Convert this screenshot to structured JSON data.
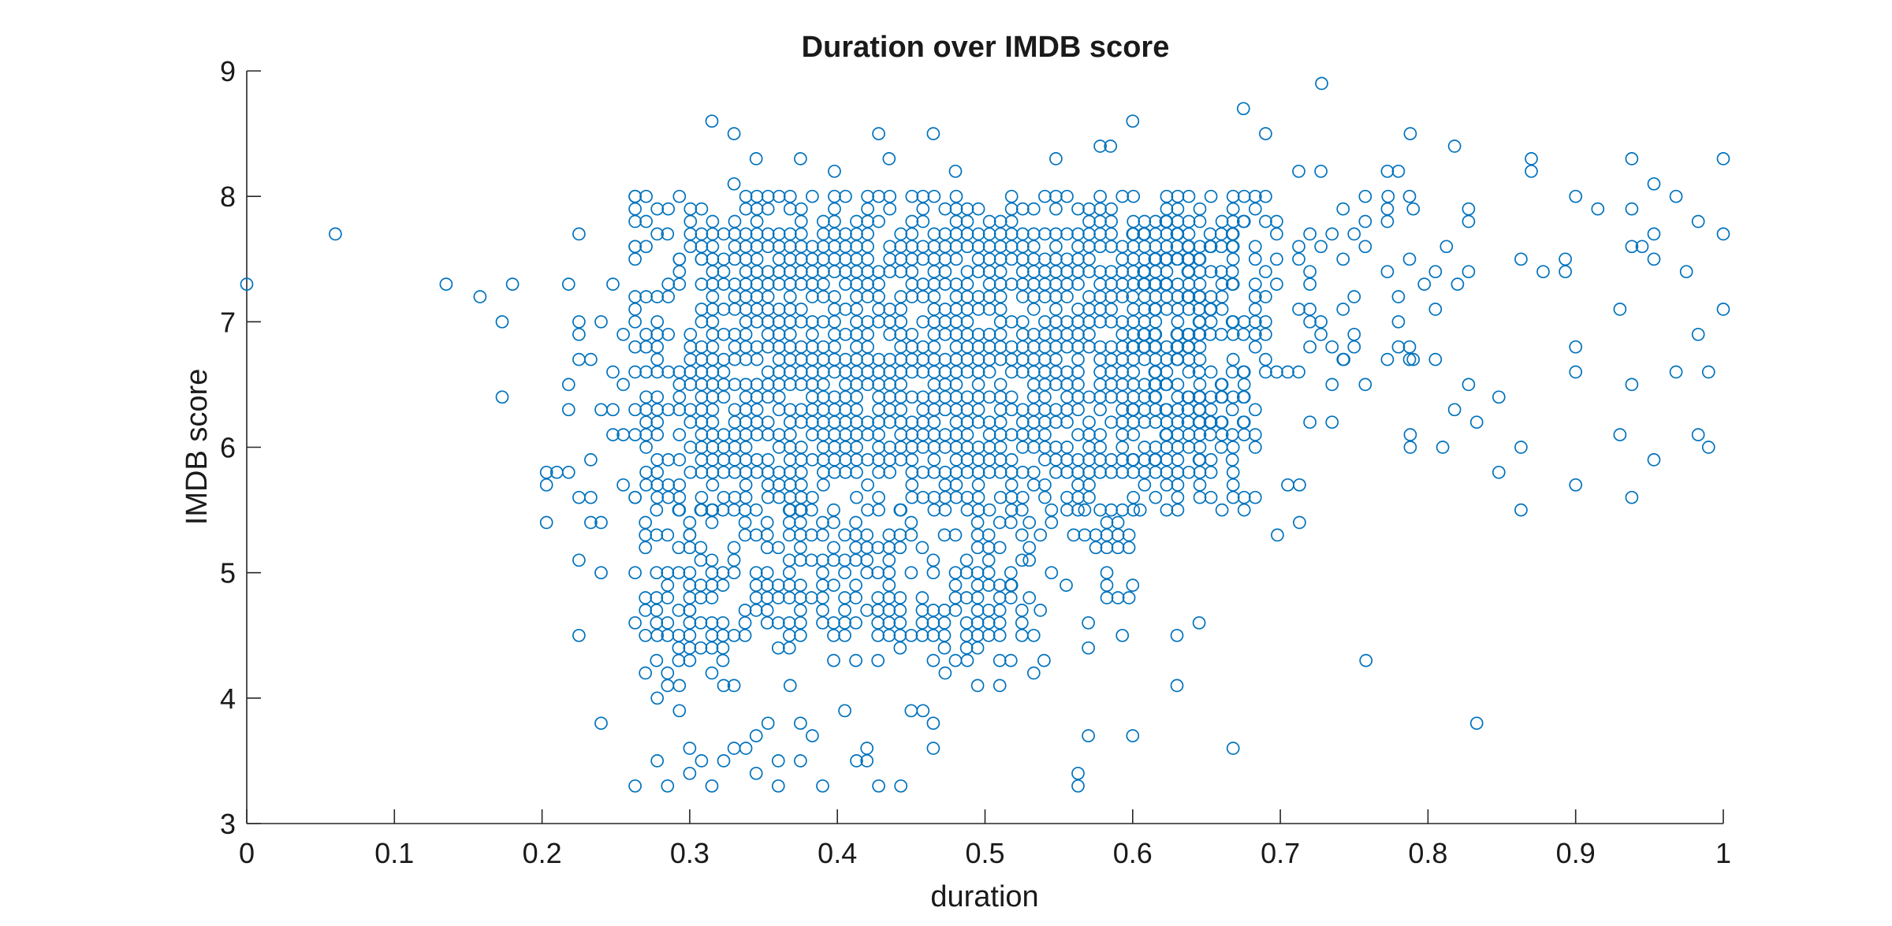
{
  "chart_data": {
    "type": "scatter",
    "title": "Duration over IMDB score",
    "xlabel": "duration",
    "ylabel": "IMDB score",
    "xlim": [
      0,
      1
    ],
    "ylim": [
      3,
      9
    ],
    "xticks": [
      "0",
      "0.1",
      "0.2",
      "0.3",
      "0.4",
      "0.5",
      "0.6",
      "0.7",
      "0.8",
      "0.9",
      "1"
    ],
    "yticks": [
      "3",
      "4",
      "5",
      "6",
      "7",
      "8",
      "9"
    ],
    "grid": false,
    "legend": "none",
    "marker": "open-circle",
    "marker_color": "#0072BD",
    "series": [
      {
        "points": [
          [
            0.0,
            7.3
          ],
          [
            0.06,
            7.7
          ],
          [
            0.135,
            7.3
          ],
          [
            0.158,
            7.2
          ],
          [
            0.173,
            7.0
          ],
          [
            0.173,
            6.4
          ],
          [
            0.18,
            7.3
          ],
          [
            0.203,
            5.8
          ],
          [
            0.203,
            5.7
          ],
          [
            0.203,
            5.4
          ],
          [
            0.21,
            5.8
          ],
          [
            0.218,
            5.8
          ],
          [
            0.218,
            7.3
          ],
          [
            0.218,
            6.5
          ],
          [
            0.218,
            6.3
          ],
          [
            0.225,
            7.7
          ],
          [
            0.225,
            7.0
          ],
          [
            0.225,
            6.9
          ],
          [
            0.225,
            6.7
          ],
          [
            0.225,
            5.6
          ],
          [
            0.225,
            5.1
          ],
          [
            0.225,
            4.5
          ],
          [
            0.233,
            6.7
          ],
          [
            0.233,
            5.9
          ],
          [
            0.233,
            5.6
          ],
          [
            0.233,
            5.4
          ],
          [
            0.24,
            7.0
          ],
          [
            0.24,
            6.3
          ],
          [
            0.24,
            5.4
          ],
          [
            0.24,
            5.0
          ],
          [
            0.24,
            3.8
          ],
          [
            0.248,
            7.3
          ],
          [
            0.248,
            6.6
          ],
          [
            0.248,
            6.3
          ],
          [
            0.248,
            6.1
          ],
          [
            0.255,
            6.9
          ],
          [
            0.255,
            6.5
          ],
          [
            0.255,
            6.1
          ],
          [
            0.255,
            5.7
          ],
          [
            0.263,
            8.0
          ],
          [
            0.263,
            7.6
          ],
          [
            0.263,
            7.2
          ],
          [
            0.263,
            6.3
          ],
          [
            0.263,
            5.6
          ],
          [
            0.263,
            5.0
          ],
          [
            0.263,
            4.6
          ],
          [
            0.263,
            3.3
          ],
          [
            0.27,
            5.3
          ],
          [
            0.27,
            4.7
          ],
          [
            0.27,
            4.2
          ],
          [
            0.278,
            4.5
          ],
          [
            0.278,
            4.0
          ],
          [
            0.278,
            3.5
          ],
          [
            0.285,
            7.7
          ],
          [
            0.285,
            4.6
          ],
          [
            0.285,
            4.2
          ],
          [
            0.285,
            4.1
          ],
          [
            0.285,
            3.3
          ],
          [
            0.293,
            7.5
          ],
          [
            0.293,
            4.1
          ],
          [
            0.293,
            3.9
          ],
          [
            0.3,
            5.3
          ],
          [
            0.3,
            5.0
          ],
          [
            0.3,
            4.7
          ],
          [
            0.3,
            4.4
          ],
          [
            0.3,
            3.6
          ],
          [
            0.3,
            3.4
          ],
          [
            0.308,
            7.5
          ],
          [
            0.308,
            3.5
          ],
          [
            0.315,
            8.6
          ],
          [
            0.315,
            3.3
          ],
          [
            0.315,
            4.2
          ],
          [
            0.323,
            4.1
          ],
          [
            0.323,
            3.5
          ],
          [
            0.33,
            8.5
          ],
          [
            0.33,
            8.1
          ],
          [
            0.33,
            3.6
          ],
          [
            0.33,
            4.1
          ],
          [
            0.338,
            3.6
          ],
          [
            0.345,
            8.3
          ],
          [
            0.345,
            3.4
          ],
          [
            0.345,
            3.7
          ],
          [
            0.353,
            3.8
          ],
          [
            0.36,
            3.3
          ],
          [
            0.36,
            3.5
          ],
          [
            0.368,
            4.1
          ],
          [
            0.375,
            8.3
          ],
          [
            0.375,
            3.5
          ],
          [
            0.375,
            3.8
          ],
          [
            0.383,
            3.7
          ],
          [
            0.39,
            3.3
          ],
          [
            0.398,
            8.2
          ],
          [
            0.405,
            3.9
          ],
          [
            0.413,
            3.5
          ],
          [
            0.42,
            3.5
          ],
          [
            0.42,
            3.6
          ],
          [
            0.428,
            8.5
          ],
          [
            0.428,
            3.3
          ],
          [
            0.435,
            8.3
          ],
          [
            0.443,
            3.3
          ],
          [
            0.45,
            3.9
          ],
          [
            0.458,
            3.9
          ],
          [
            0.465,
            8.5
          ],
          [
            0.465,
            3.6
          ],
          [
            0.465,
            3.8
          ],
          [
            0.473,
            4.2
          ],
          [
            0.48,
            8.2
          ],
          [
            0.488,
            4.3
          ],
          [
            0.495,
            4.6
          ],
          [
            0.495,
            4.1
          ],
          [
            0.51,
            4.5
          ],
          [
            0.51,
            4.1
          ],
          [
            0.518,
            4.9
          ],
          [
            0.533,
            4.5
          ],
          [
            0.533,
            4.2
          ],
          [
            0.54,
            4.3
          ],
          [
            0.548,
            8.3
          ],
          [
            0.555,
            4.9
          ],
          [
            0.563,
            3.4
          ],
          [
            0.563,
            3.3
          ],
          [
            0.57,
            4.6
          ],
          [
            0.57,
            4.4
          ],
          [
            0.57,
            3.7
          ],
          [
            0.578,
            8.4
          ],
          [
            0.585,
            8.4
          ],
          [
            0.593,
            4.5
          ],
          [
            0.6,
            8.6
          ],
          [
            0.6,
            4.9
          ],
          [
            0.6,
            3.7
          ],
          [
            0.63,
            4.5
          ],
          [
            0.63,
            4.1
          ],
          [
            0.645,
            4.6
          ],
          [
            0.668,
            3.6
          ],
          [
            0.675,
            8.7
          ],
          [
            0.69,
            8.5
          ],
          [
            0.698,
            5.3
          ],
          [
            0.705,
            5.7
          ],
          [
            0.713,
            5.7
          ],
          [
            0.713,
            5.4
          ],
          [
            0.72,
            6.2
          ],
          [
            0.728,
            8.9
          ],
          [
            0.735,
            6.2
          ],
          [
            0.743,
            6.7
          ],
          [
            0.758,
            4.3
          ],
          [
            0.773,
            8.0
          ],
          [
            0.788,
            8.5
          ],
          [
            0.788,
            6.1
          ],
          [
            0.788,
            6.0
          ],
          [
            0.81,
            6.0
          ],
          [
            0.818,
            8.4
          ],
          [
            0.818,
            6.3
          ],
          [
            0.833,
            6.2
          ],
          [
            0.833,
            3.8
          ],
          [
            0.848,
            6.4
          ],
          [
            0.848,
            5.8
          ],
          [
            0.863,
            7.5
          ],
          [
            0.863,
            6.0
          ],
          [
            0.863,
            5.5
          ],
          [
            0.87,
            8.3
          ],
          [
            0.87,
            8.2
          ],
          [
            0.878,
            7.4
          ],
          [
            0.893,
            7.5
          ],
          [
            0.893,
            7.4
          ],
          [
            0.9,
            8.0
          ],
          [
            0.9,
            6.8
          ],
          [
            0.9,
            6.6
          ],
          [
            0.9,
            5.7
          ],
          [
            0.915,
            7.9
          ],
          [
            0.93,
            7.1
          ],
          [
            0.93,
            6.1
          ],
          [
            0.938,
            8.3
          ],
          [
            0.938,
            7.9
          ],
          [
            0.938,
            7.6
          ],
          [
            0.938,
            6.5
          ],
          [
            0.938,
            5.6
          ],
          [
            0.945,
            7.6
          ],
          [
            0.953,
            8.1
          ],
          [
            0.953,
            7.7
          ],
          [
            0.953,
            7.5
          ],
          [
            0.953,
            5.9
          ],
          [
            0.968,
            8.0
          ],
          [
            0.968,
            6.6
          ],
          [
            0.975,
            7.4
          ],
          [
            0.983,
            7.8
          ],
          [
            0.983,
            6.9
          ],
          [
            0.983,
            6.1
          ],
          [
            0.99,
            6.6
          ],
          [
            0.99,
            6.0
          ],
          [
            1.0,
            8.3
          ],
          [
            1.0,
            7.7
          ],
          [
            1.0,
            7.1
          ]
        ],
        "dense_regions": [
          {
            "x": [
              0.263,
              0.69
            ],
            "y": [
              5.5,
              8.0
            ],
            "x_step": 0.0075,
            "y_step": 0.1,
            "density": 0.85
          },
          {
            "x": [
              0.27,
              0.53
            ],
            "y": [
              4.3,
              5.5
            ],
            "x_step": 0.0075,
            "y_step": 0.1,
            "density": 0.62
          },
          {
            "x": [
              0.53,
              0.61
            ],
            "y": [
              4.7,
              5.5
            ],
            "x_step": 0.0075,
            "y_step": 0.1,
            "density": 0.3
          },
          {
            "x": [
              0.6,
              0.68
            ],
            "y": [
              5.9,
              7.8
            ],
            "x_step": 0.0075,
            "y_step": 0.1,
            "density": 0.45
          },
          {
            "x": [
              0.69,
              0.79
            ],
            "y": [
              6.5,
              8.2
            ],
            "x_step": 0.0075,
            "y_step": 0.1,
            "density": 0.28
          },
          {
            "x": [
              0.79,
              0.84
            ],
            "y": [
              6.5,
              7.9
            ],
            "x_step": 0.0075,
            "y_step": 0.1,
            "density": 0.22
          }
        ]
      }
    ]
  }
}
